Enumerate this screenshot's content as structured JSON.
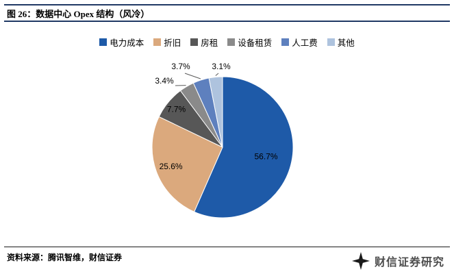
{
  "header": {
    "title": "图 26：数据中心 Opex 结构（风冷）"
  },
  "chart_data": {
    "type": "pie",
    "title": "数据中心 Opex 结构（风冷）",
    "legend_position": "top",
    "start_angle_deg": 0,
    "direction": "clockwise",
    "categories": [
      "电力成本",
      "折旧",
      "房租",
      "设备租赁",
      "人工费",
      "其他"
    ],
    "values": [
      56.7,
      25.6,
      7.7,
      3.4,
      3.7,
      3.1
    ],
    "slices": [
      {
        "label": "电力成本",
        "value": 56.7,
        "pct_label": "56.7%",
        "color": "#1E5AA8",
        "label_placement": "inside"
      },
      {
        "label": "折旧",
        "value": 25.6,
        "pct_label": "25.6%",
        "color": "#DBA97D",
        "label_placement": "inside"
      },
      {
        "label": "房租",
        "value": 7.7,
        "pct_label": "7.7%",
        "color": "#575757",
        "label_placement": "inside"
      },
      {
        "label": "设备租赁",
        "value": 3.4,
        "pct_label": "3.4%",
        "color": "#8A8A8A",
        "label_placement": "outside"
      },
      {
        "label": "人工费",
        "value": 3.7,
        "pct_label": "3.7%",
        "color": "#5E80BE",
        "label_placement": "outside"
      },
      {
        "label": "其他",
        "value": 3.1,
        "pct_label": "3.1%",
        "color": "#AEC3DE",
        "label_placement": "outside"
      }
    ]
  },
  "footer": {
    "source": "资料来源：腾讯智维，财信证券",
    "brand": "财信证券研究",
    "logo_icon": "four-point-star"
  },
  "colors": {
    "header_rule": "#1F3864",
    "footer_rule": "#1a1a1a",
    "label_text": "#000000",
    "leader_line": "#595959",
    "brand_text": "#4d4d4d",
    "logo": "#1a1a1a"
  }
}
